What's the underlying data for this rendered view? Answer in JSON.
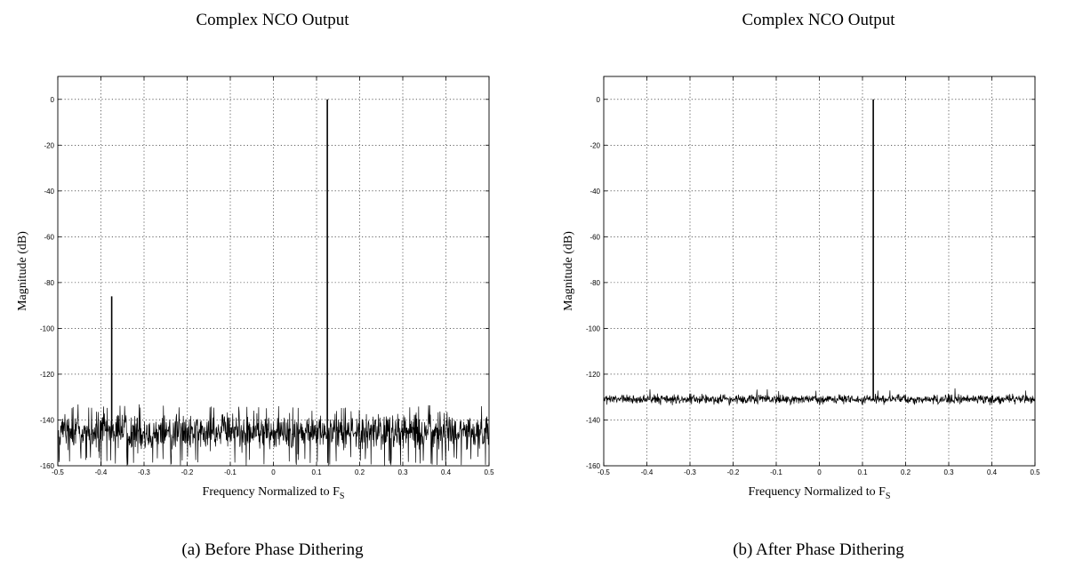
{
  "chart_data": [
    {
      "type": "line",
      "title": "Complex NCO Output",
      "caption": "(a) Before Phase Dithering",
      "xlabel": "Frequency Normalized to F",
      "xlabel_subscript": "S",
      "ylabel": "Magnitude (dB)",
      "xlim": [
        -0.5,
        0.5
      ],
      "ylim": [
        -160,
        10
      ],
      "x_ticks": [
        -0.5,
        -0.4,
        -0.3,
        -0.2,
        -0.1,
        0,
        0.1,
        0.2,
        0.3,
        0.4,
        0.5
      ],
      "x_tick_labels": [
        "-0.5",
        "-0.4",
        "-0.3",
        "-0.2",
        "-0.1",
        "0",
        "0.1",
        "0.2",
        "0.3",
        "0.4",
        "0.5"
      ],
      "y_ticks": [
        0,
        -20,
        -40,
        -60,
        -80,
        -100,
        -120,
        -140,
        -160
      ],
      "y_tick_labels": [
        "0",
        "-20",
        "-40",
        "-60",
        "-80",
        "-100",
        "-120",
        "-140",
        "-160"
      ],
      "grid": true,
      "noise_floor": {
        "mean_db": -145,
        "min_db": -160,
        "max_db": -133
      },
      "spurs": [
        {
          "x": 0.125,
          "y": 0
        },
        {
          "x": -0.375,
          "y": -86
        }
      ]
    },
    {
      "type": "line",
      "title": "Complex NCO Output",
      "caption": "(b) After Phase Dithering",
      "xlabel": "Frequency Normalized to F",
      "xlabel_subscript": "S",
      "ylabel": "Magnitude (dB)",
      "xlim": [
        -0.5,
        0.5
      ],
      "ylim": [
        -160,
        10
      ],
      "x_ticks": [
        -0.5,
        -0.4,
        -0.3,
        -0.2,
        -0.1,
        0,
        0.1,
        0.2,
        0.3,
        0.4,
        0.5
      ],
      "x_tick_labels": [
        "-0.5",
        "-0.4",
        "-0.3",
        "-0.2",
        "-0.1",
        "0",
        "0.1",
        "0.2",
        "0.3",
        "0.4",
        "0.5"
      ],
      "y_ticks": [
        0,
        -20,
        -40,
        -60,
        -80,
        -100,
        -120,
        -140,
        -160
      ],
      "y_tick_labels": [
        "0",
        "-20",
        "-40",
        "-60",
        "-80",
        "-100",
        "-120",
        "-140",
        "-160"
      ],
      "grid": true,
      "noise_floor": {
        "mean_db": -131,
        "min_db": -134,
        "max_db": -126
      },
      "spurs": [
        {
          "x": 0.125,
          "y": 0
        }
      ]
    }
  ]
}
